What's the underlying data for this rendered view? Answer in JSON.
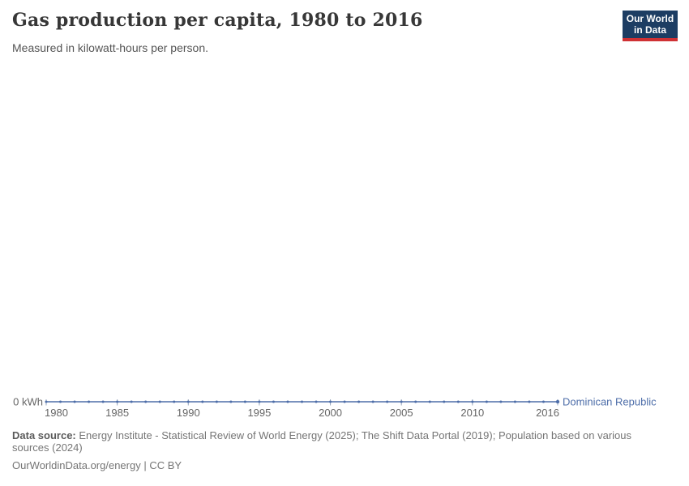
{
  "header": {
    "title": "Gas production per capita, 1980 to 2016",
    "subtitle": "Measured in kilowatt-hours per person.",
    "logo": {
      "line1": "Our World",
      "line2": "in Data",
      "background_color": "#1d3d63",
      "accent_color": "#cf3134"
    }
  },
  "chart_data": {
    "type": "line",
    "title": "Gas production per capita, 1980 to 2016",
    "xlabel": "",
    "ylabel": "kilowatt-hours per person",
    "x_range": [
      1980,
      2016
    ],
    "x_ticks": [
      1980,
      1985,
      1990,
      1995,
      2000,
      2005,
      2010,
      2016
    ],
    "y_axis_zero_label": "0 kWh",
    "grid": false,
    "legend_position": "right-of-line-end",
    "series": [
      {
        "name": "Dominican Republic",
        "color": "#4e6ea9",
        "x": [
          1980,
          1981,
          1982,
          1983,
          1984,
          1985,
          1986,
          1987,
          1988,
          1989,
          1990,
          1991,
          1992,
          1993,
          1994,
          1995,
          1996,
          1997,
          1998,
          1999,
          2000,
          2001,
          2002,
          2003,
          2004,
          2005,
          2006,
          2007,
          2008,
          2009,
          2010,
          2011,
          2012,
          2013,
          2014,
          2015,
          2016
        ],
        "values": [
          0,
          0,
          0,
          0,
          0,
          0,
          0,
          0,
          0,
          0,
          0,
          0,
          0,
          0,
          0,
          0,
          0,
          0,
          0,
          0,
          0,
          0,
          0,
          0,
          0,
          0,
          0,
          0,
          0,
          0,
          0,
          0,
          0,
          0,
          0,
          0,
          0
        ]
      }
    ],
    "axis_text_color": "#666666",
    "tick_color": "#99a7bd"
  },
  "footer": {
    "datasource_label": "Data source:",
    "datasource_text": " Energy Institute - Statistical Review of World Energy (2025); The Shift Data Portal (2019); Population based on various sources (2024)",
    "license_link": "OurWorldinData.org/energy",
    "license_sep": " | ",
    "cc_label": "CC BY"
  }
}
